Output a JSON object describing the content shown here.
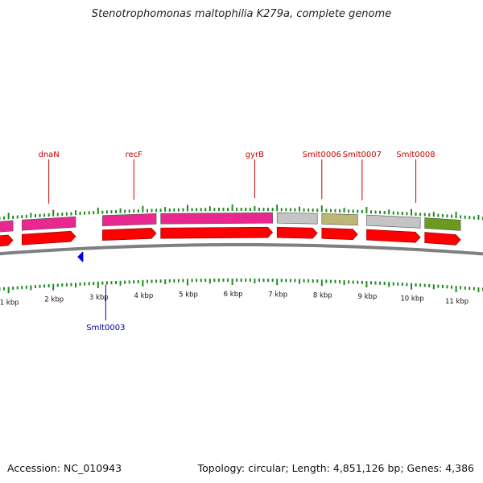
{
  "title": "Stenotrophomonas maltophilia K279a, complete genome",
  "accession": "Accession: NC_010943",
  "summary": "Topology: circular; Length: 4,851,126 bp; Genes: 4,386",
  "colors": {
    "gene_pink": "#e8288e",
    "cds_red": "#ff0000",
    "gene_gray": "#c4c4c4",
    "gene_olive": "#bdb676",
    "gene_green": "#6b9b1a",
    "reverse_blue": "#0000ee",
    "backbone": "#7f7f7f",
    "tick_green": "#1e8a1e",
    "label_red": "#cc0000",
    "label_blue": "#000099"
  },
  "gene_labels": [
    {
      "name": "dnaN",
      "kbp": 1.9
    },
    {
      "name": "recF",
      "kbp": 3.8
    },
    {
      "name": "gyrB",
      "kbp": 6.5
    },
    {
      "name": "Smlt0006",
      "kbp": 8.0
    },
    {
      "name": "Smlt0007",
      "kbp": 8.9
    },
    {
      "name": "Smlt0008",
      "kbp": 10.1
    }
  ],
  "reverse_label": {
    "name": "Smlt0003",
    "kbp": 3.1
  },
  "genes": [
    {
      "start": 0.2,
      "end": 1.1,
      "type": "gene_pink"
    },
    {
      "start": 1.3,
      "end": 2.5,
      "type": "gene_pink"
    },
    {
      "start": 3.1,
      "end": 4.3,
      "type": "gene_pink"
    },
    {
      "start": 4.4,
      "end": 6.9,
      "type": "gene_pink"
    },
    {
      "start": 7.0,
      "end": 7.9,
      "type": "gene_gray"
    },
    {
      "start": 8.0,
      "end": 8.8,
      "type": "gene_olive"
    },
    {
      "start": 9.0,
      "end": 10.2,
      "type": "gene_gray"
    },
    {
      "start": 10.3,
      "end": 11.1,
      "type": "gene_green"
    }
  ],
  "cds": [
    {
      "start": 0.2,
      "end": 1.1
    },
    {
      "start": 1.3,
      "end": 2.5
    },
    {
      "start": 3.1,
      "end": 4.3
    },
    {
      "start": 4.4,
      "end": 6.9
    },
    {
      "start": 7.0,
      "end": 7.9
    },
    {
      "start": 8.0,
      "end": 8.8
    },
    {
      "start": 9.0,
      "end": 10.2
    },
    {
      "start": 10.3,
      "end": 11.1
    }
  ],
  "reverse_genes": [
    {
      "start": 2.4,
      "end": 2.7
    }
  ],
  "scale_labels": [
    "1 kbp",
    "2 kbp",
    "3 kbp",
    "4 kbp",
    "5 kbp",
    "6 kbp",
    "7 kbp",
    "8 kbp",
    "9 kbp",
    "10 kbp",
    "11 kbp"
  ]
}
